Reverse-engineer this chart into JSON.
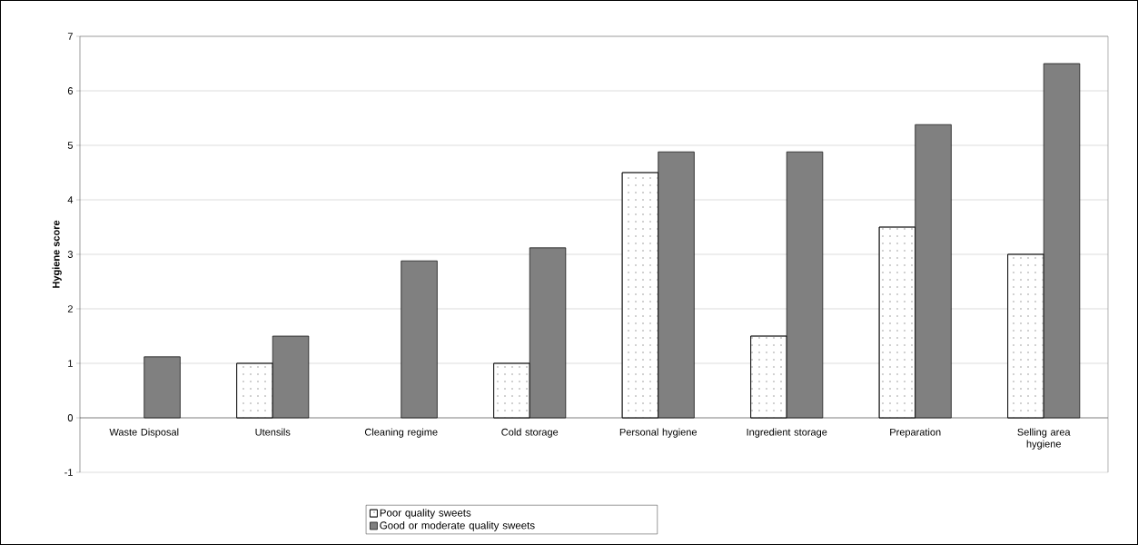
{
  "chart_data": {
    "type": "bar",
    "ylabel": "Hygiene score",
    "categories": [
      "Waste Disposal",
      "Utensils",
      "Cleaning regime",
      "Cold storage",
      "Personal hygiene",
      "Ingredient storage",
      "Preparation",
      "Selling area hygiene"
    ],
    "series": [
      {
        "name": "Poor quality sweets",
        "color": "#ffffff",
        "values": [
          null,
          1,
          null,
          1,
          4.5,
          1.5,
          3.5,
          3
        ]
      },
      {
        "name": "Good  or moderate quality sweets",
        "color": "#808080",
        "values": [
          1.12,
          1.5,
          2.88,
          3.12,
          4.88,
          4.88,
          5.38,
          6.5
        ]
      }
    ],
    "ylim": [
      -1,
      7
    ],
    "yticks": [
      -1,
      0,
      1,
      2,
      3,
      4,
      5,
      6,
      7
    ],
    "grid": "y",
    "legend": "bottom"
  }
}
